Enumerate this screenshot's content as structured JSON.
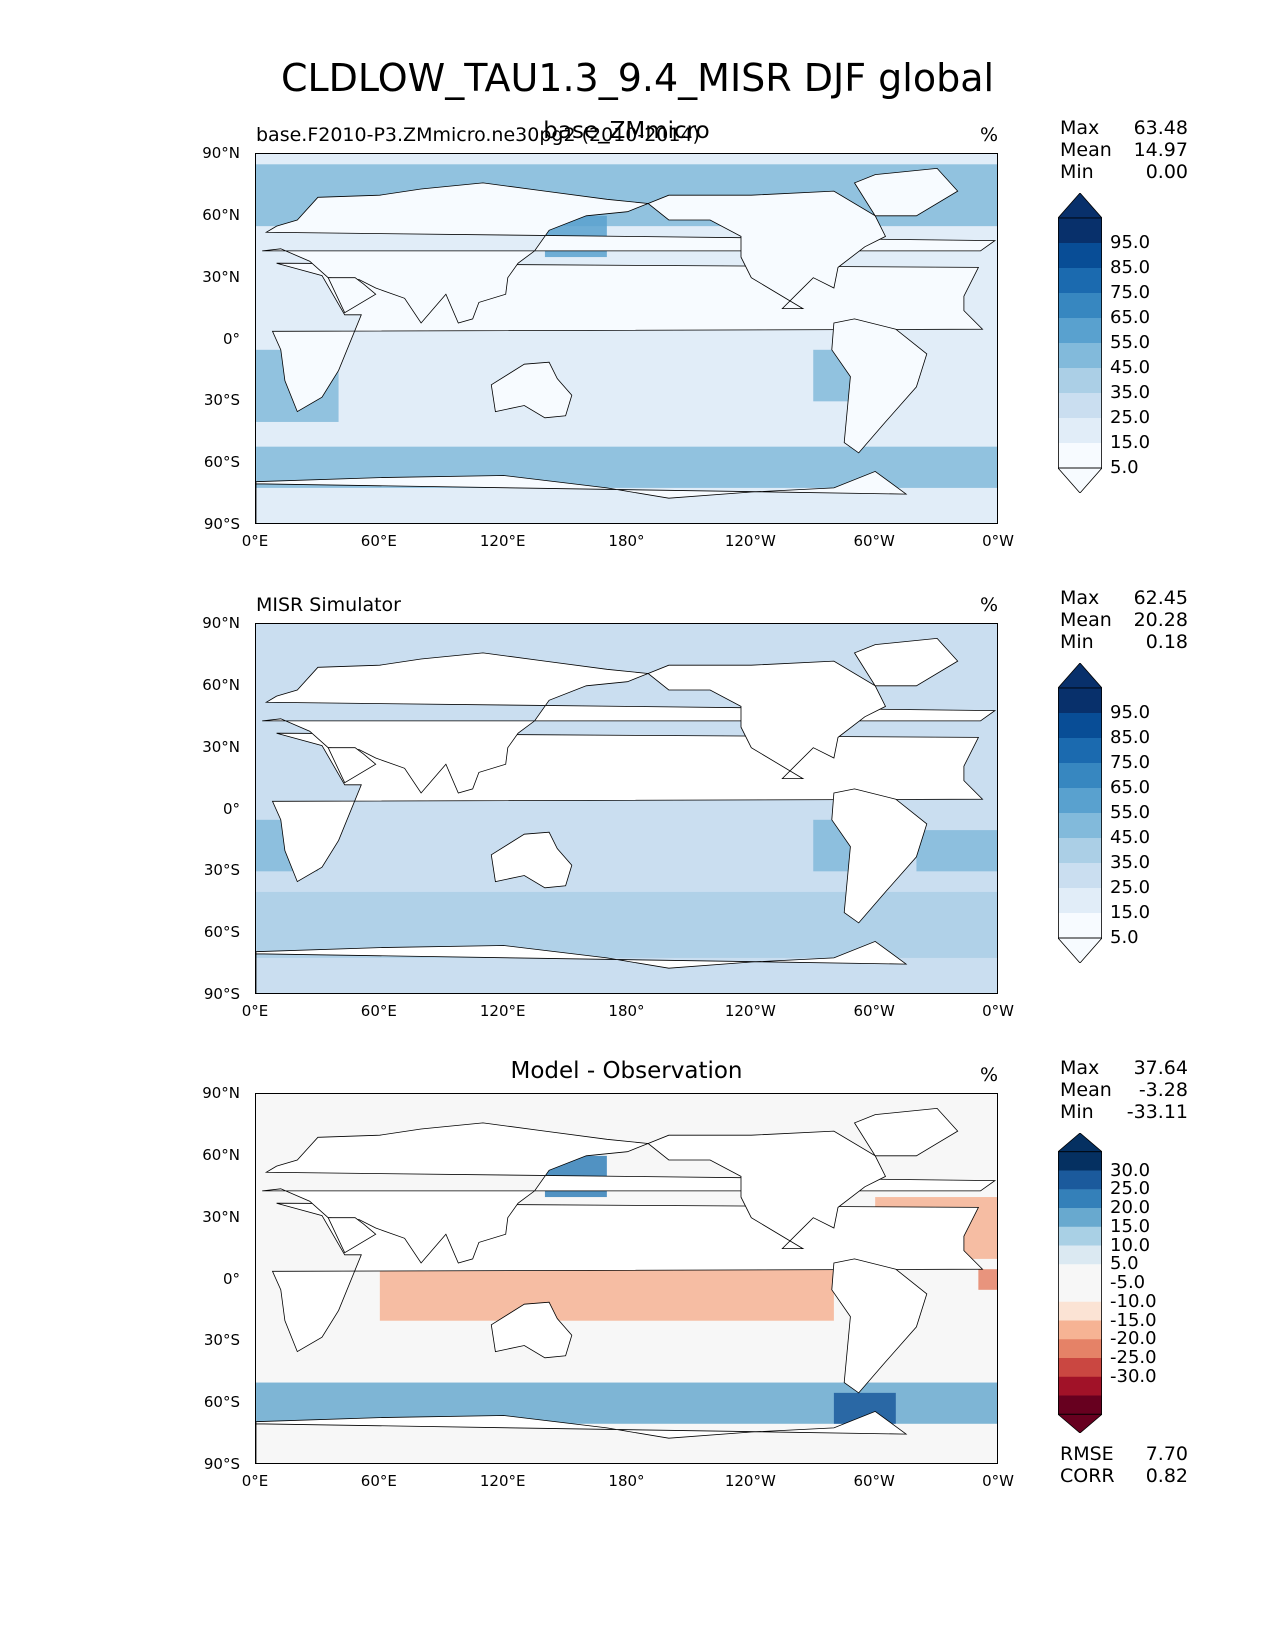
{
  "title": "CLDLOW_TAU1.3_9.4_MISR DJF global",
  "lat_labels": [
    "90°N",
    "60°N",
    "30°N",
    "0°",
    "30°S",
    "60°S",
    "90°S"
  ],
  "lon_labels": [
    "0°E",
    "60°E",
    "120°E",
    "180°",
    "120°W",
    "60°W",
    "0°W"
  ],
  "colors": {
    "blues": [
      "#f7fbff",
      "#e1edf8",
      "#cadef0",
      "#abcfe6",
      "#82badb",
      "#59a1cf",
      "#3787c0",
      "#1b6aaf",
      "#084d96",
      "#08306b"
    ],
    "diverging": [
      "#67001f",
      "#a11228",
      "#ca4741",
      "#e58267",
      "#f6b394",
      "#fbe3d4",
      "#f7f7f7",
      "#f7f7f7",
      "#dbe9f2",
      "#a9d0e5",
      "#68a9cf",
      "#3480b9",
      "#1b5a9c",
      "#053061"
    ]
  },
  "panels": [
    {
      "id": "model",
      "left_title": "base.F2010-P3.ZMmicro.ne30pg2 (2010-2014)",
      "center_title": "base_ZMmicro",
      "units": "%",
      "stats": [
        {
          "key": "Max",
          "value": "63.48"
        },
        {
          "key": "Mean",
          "value": "14.97"
        },
        {
          "key": "Min",
          "value": "0.00"
        }
      ],
      "colorbar_labels": [
        "95.0",
        "85.0",
        "75.0",
        "65.0",
        "55.0",
        "45.0",
        "35.0",
        "25.0",
        "15.0",
        "5.0"
      ],
      "field": {
        "type": "cloud",
        "fields": [
          {
            "lon": [
              -20,
              380
            ],
            "lat": [
              55,
              85
            ],
            "level": 4
          },
          {
            "lon": [
              -20,
              380
            ],
            "lat": [
              -72,
              -52
            ],
            "level": 4
          },
          {
            "lon": [
              0,
              40
            ],
            "lat": [
              -40,
              -5
            ],
            "level": 4
          },
          {
            "lon": [
              270,
              290
            ],
            "lat": [
              -30,
              -5
            ],
            "level": 4
          },
          {
            "lon": [
              140,
              170
            ],
            "lat": [
              40,
              60
            ],
            "level": 5
          }
        ]
      }
    },
    {
      "id": "obs",
      "left_title": "MISR Simulator",
      "center_title": "",
      "units": "%",
      "stats": [
        {
          "key": "Max",
          "value": "62.45"
        },
        {
          "key": "Mean",
          "value": "20.28"
        },
        {
          "key": "Min",
          "value": "0.18"
        }
      ],
      "colorbar_labels": [
        "95.0",
        "85.0",
        "75.0",
        "65.0",
        "55.0",
        "45.0",
        "35.0",
        "25.0",
        "15.0",
        "5.0"
      ],
      "field": {
        "type": "cloud",
        "fields": [
          {
            "lon": [
              -20,
              380
            ],
            "lat": [
              -72,
              -40
            ],
            "level": 3
          },
          {
            "lon": [
              0,
              30
            ],
            "lat": [
              -30,
              -5
            ],
            "level": 4
          },
          {
            "lon": [
              270,
              290
            ],
            "lat": [
              -30,
              -5
            ],
            "level": 4
          },
          {
            "lon": [
              320,
              360
            ],
            "lat": [
              -30,
              -10
            ],
            "level": 4
          }
        ]
      }
    },
    {
      "id": "diff",
      "left_title": "",
      "center_title": "Model - Observation",
      "units": "%",
      "stats": [
        {
          "key": "Max",
          "value": "37.64"
        },
        {
          "key": "Mean",
          "value": "-3.28"
        },
        {
          "key": "Min",
          "value": "-33.11"
        }
      ],
      "colorbar_labels": [
        "30.0",
        "25.0",
        "20.0",
        "15.0",
        "10.0",
        "5.0",
        "-5.0",
        "-10.0",
        "-15.0",
        "-20.0",
        "-25.0",
        "-30.0"
      ],
      "bottom_stats": [
        {
          "key": "RMSE",
          "value": "7.70"
        },
        {
          "key": "CORR",
          "value": "0.82"
        }
      ],
      "field": {
        "type": "diff",
        "fields": [
          {
            "lon": [
              140,
              170
            ],
            "lat": [
              40,
              60
            ],
            "level": 11
          },
          {
            "lon": [
              -20,
              380
            ],
            "lat": [
              -70,
              -50
            ],
            "level": 10
          },
          {
            "lon": [
              280,
              310
            ],
            "lat": [
              -70,
              -55
            ],
            "level": 12
          },
          {
            "lon": [
              60,
              280
            ],
            "lat": [
              -20,
              25
            ],
            "level": 4
          },
          {
            "lon": [
              300,
              360
            ],
            "lat": [
              10,
              40
            ],
            "level": 4
          },
          {
            "lon": [
              350,
              370
            ],
            "lat": [
              -5,
              5
            ],
            "level": 3
          }
        ]
      }
    }
  ]
}
